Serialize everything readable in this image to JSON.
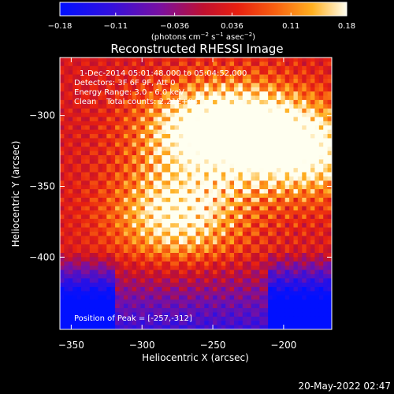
{
  "chart_data": {
    "type": "heatmap",
    "title": "Reconstructed RHESSI Image",
    "xlabel": "Heliocentric X (arcsec)",
    "ylabel": "Heliocentric Y (arcsec)",
    "xlim": [
      -358,
      -166
    ],
    "ylim": [
      -451,
      -259
    ],
    "xticks": [
      -350,
      -300,
      -250,
      -200
    ],
    "xtick_labels": [
      "−350",
      "−300",
      "−250",
      "−200"
    ],
    "yticks": [
      -300,
      -350,
      -400
    ],
    "ytick_labels": [
      "−300",
      "−350",
      "−400"
    ],
    "colorbar": {
      "min": -0.18,
      "max": 0.18,
      "ticks": [
        -0.18,
        -0.11,
        -0.036,
        0.036,
        0.11,
        0.18
      ],
      "tick_labels": [
        "−0.18",
        "−0.11",
        "−0.036",
        "0.036",
        "0.11",
        "0.18"
      ],
      "units_main": "(photons cm",
      "units_exp1": "−2",
      "units_mid": " s",
      "units_exp2": "−1",
      "units_end": " asec",
      "units_exp3": "−2",
      "units_close": ")"
    },
    "sources": [
      {
        "x": -257,
        "y": -312,
        "peak": 0.18
      },
      {
        "x": -220,
        "y": -312,
        "peak": 0.16
      },
      {
        "x": -275,
        "y": -370,
        "peak": 0.17
      },
      {
        "x": -180,
        "y": -327,
        "peak": 0.14
      }
    ],
    "annotations": {
      "line1": "1-Dec-2014 05:01:48.000 to 05:04:52.000",
      "line2": "Detectors: 3F 6F 9F, Att 0",
      "line3": "Energy Range: 3.0 - 6.0 keV",
      "line4": "Clean    Total counts: 2.21E+04",
      "peak": "Position of Peak = [-257,-312]"
    }
  },
  "footer": {
    "date": "20-May-2022 02:47"
  }
}
